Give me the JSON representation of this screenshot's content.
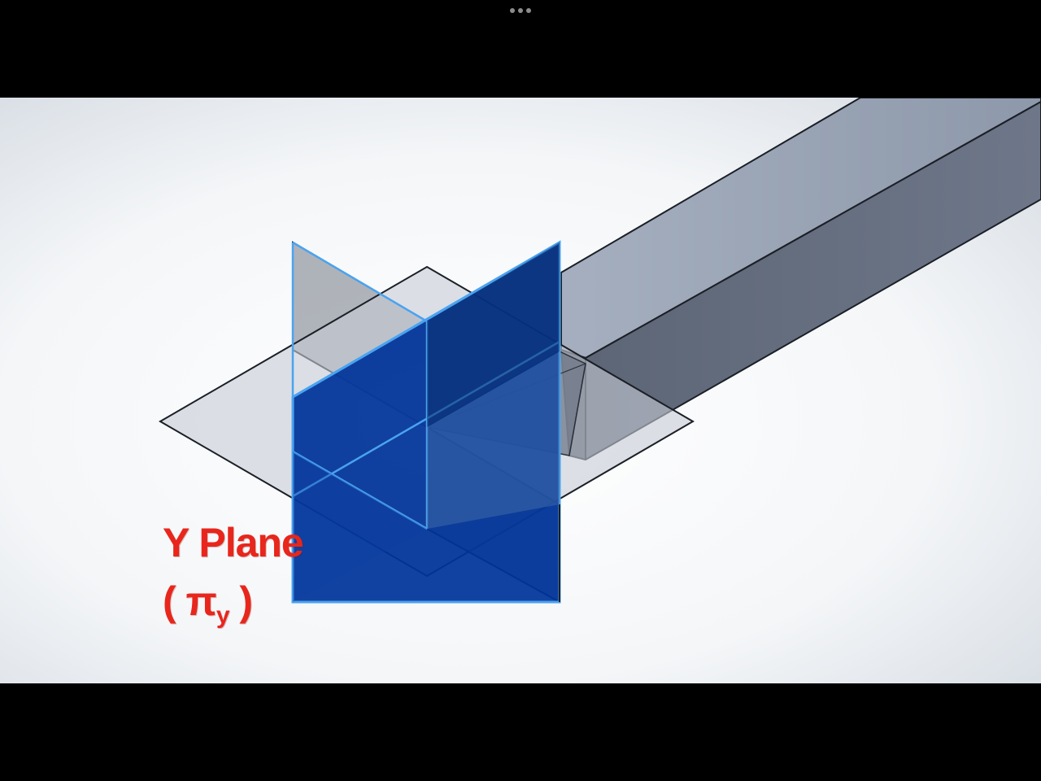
{
  "viewer": {
    "more_icon": "more-horizontal-icon"
  },
  "diagram": {
    "label": {
      "title": "Y Plane",
      "open_paren": "( ",
      "symbol": "π",
      "subscript": "y",
      "close_paren": " )"
    },
    "colors": {
      "label": "#e8261c",
      "y_plane": "#00349a",
      "y_plane_edge": "#4aa3f0",
      "beam": "#6e7b91",
      "horizontal_plane": "#c9d0da",
      "x_plane": "#5d6470",
      "background": "#eef1f4"
    }
  }
}
